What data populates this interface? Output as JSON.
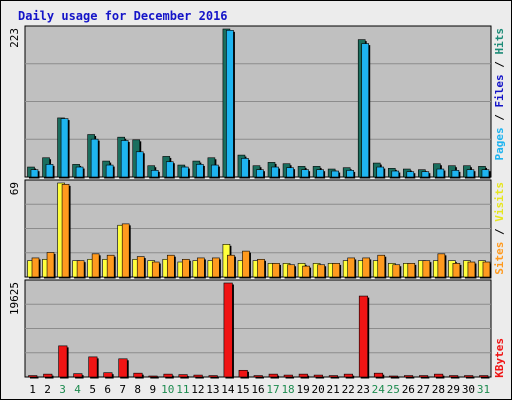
{
  "colors": {
    "background": "#ececec",
    "panel": "#c0c0c0",
    "grid": "#8c8c8c",
    "title": "#1414c8",
    "pages": "#1e8c78",
    "files": "#1eb4f0",
    "hits": "#1a6e5e",
    "visits": "#ffff3c",
    "sites": "#ff9a1e",
    "kbytes": "#f01414",
    "weekday_label": "#000000",
    "weekend_label": "#1e8c50"
  },
  "chart_data": {
    "type": "bar",
    "title": "Daily usage for December 2016",
    "categories": [
      "1",
      "2",
      "3",
      "4",
      "5",
      "6",
      "7",
      "8",
      "9",
      "10",
      "11",
      "12",
      "13",
      "14",
      "15",
      "16",
      "17",
      "18",
      "19",
      "20",
      "21",
      "22",
      "23",
      "24",
      "25",
      "26",
      "27",
      "28",
      "29",
      "30",
      "31"
    ],
    "weekend_days": [
      "3",
      "4",
      "10",
      "11",
      "17",
      "18",
      "24",
      "25",
      "31"
    ],
    "legend": {
      "panel1": [
        "Pages",
        "Files",
        "Hits"
      ],
      "panel2": [
        "Sites",
        "Visits"
      ],
      "panel3": [
        "KBytes"
      ]
    },
    "panels": [
      {
        "max_label": "223",
        "ylim": [
          0,
          223
        ],
        "series": [
          {
            "name": "Hits",
            "values": [
              15,
              29,
              89,
              19,
              64,
              24,
              60,
              56,
              17,
              31,
              18,
              24,
              29,
              223,
              33,
              17,
              22,
              20,
              16,
              16,
              12,
              14,
              207,
              21,
              13,
              12,
              11,
              20,
              17,
              17,
              16
            ]
          },
          {
            "name": "Files",
            "values": [
              11,
              19,
              88,
              15,
              57,
              18,
              55,
              38,
              10,
              23,
              15,
              19,
              18,
              221,
              28,
              11,
              15,
              14,
              11,
              11,
              9,
              10,
              201,
              15,
              9,
              8,
              8,
              12,
              10,
              11,
              11
            ]
          }
        ]
      },
      {
        "max_label": "69",
        "ylim": [
          0,
          69
        ],
        "series": [
          {
            "name": "Visits",
            "values": [
              12,
              13,
              69,
              12,
              13,
              13,
              38,
              13,
              12,
              13,
              11,
              12,
              12,
              24,
              12,
              12,
              10,
              10,
              10,
              10,
              10,
              12,
              12,
              12,
              10,
              10,
              12,
              12,
              12,
              12,
              12
            ]
          },
          {
            "name": "Sites",
            "values": [
              14,
              18,
              68,
              12,
              17,
              16,
              39,
              15,
              11,
              16,
              13,
              14,
              14,
              16,
              19,
              13,
              10,
              9,
              8,
              9,
              10,
              14,
              14,
              16,
              9,
              10,
              12,
              17,
              10,
              11,
              11
            ]
          }
        ]
      },
      {
        "max_label": "19625",
        "ylim": [
          0,
          19625
        ],
        "series": [
          {
            "name": "KBytes",
            "values": [
              300,
              600,
              6500,
              700,
              4200,
              900,
              3800,
              800,
              200,
              600,
              500,
              400,
              300,
              19625,
              1400,
              300,
              600,
              400,
              600,
              400,
              300,
              600,
              16900,
              800,
              200,
              300,
              300,
              600,
              300,
              300,
              300
            ]
          }
        ]
      }
    ]
  }
}
